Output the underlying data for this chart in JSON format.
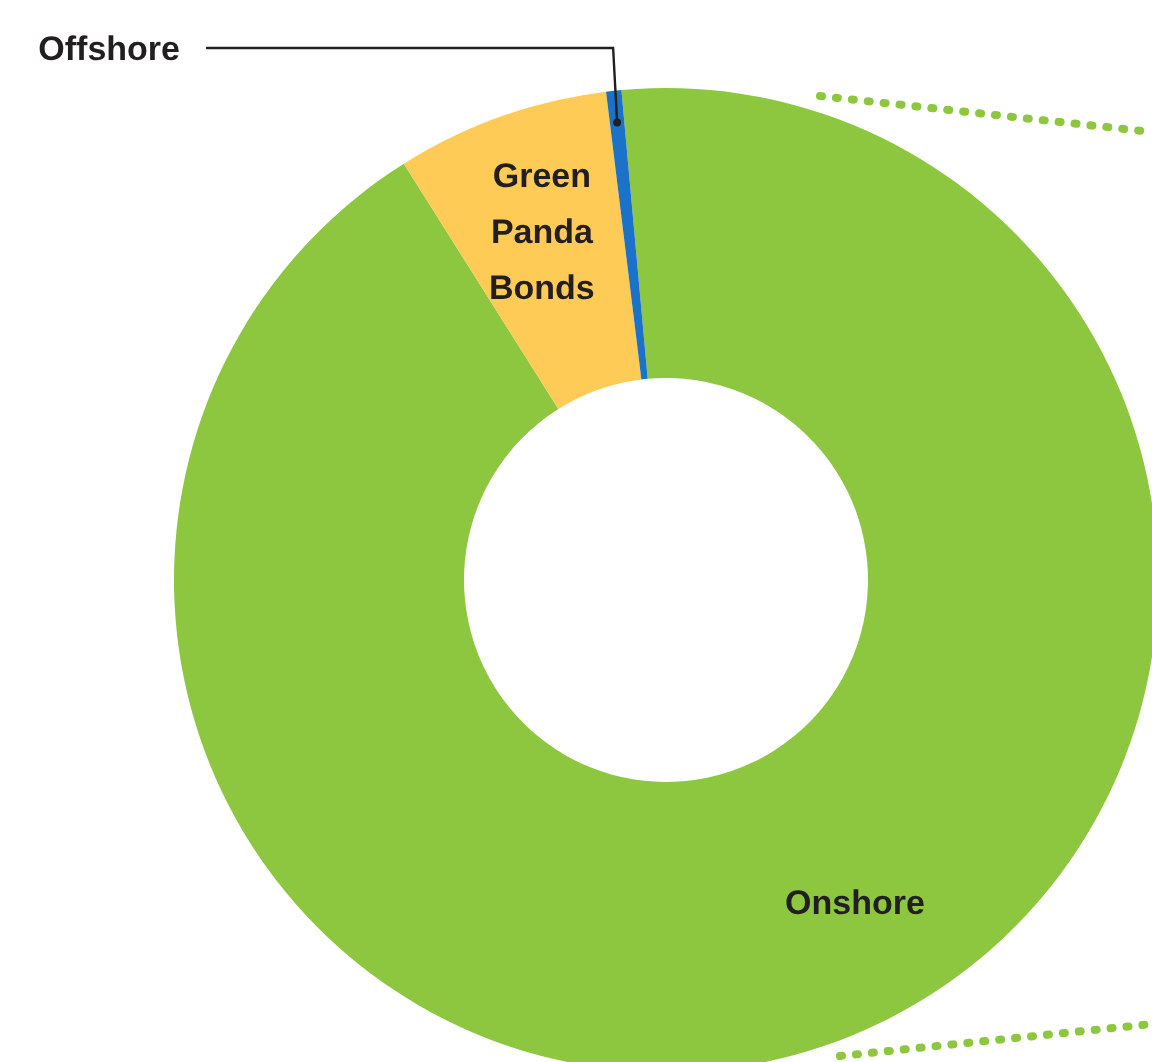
{
  "chart_data": {
    "type": "donut",
    "categories": [
      "Onshore",
      "Green Panda Bonds",
      "Offshore"
    ],
    "values": [
      92.5,
      7.0,
      0.5
    ],
    "colors": [
      "#8dc63f",
      "#fecb57",
      "#1a73c8"
    ]
  }
}
